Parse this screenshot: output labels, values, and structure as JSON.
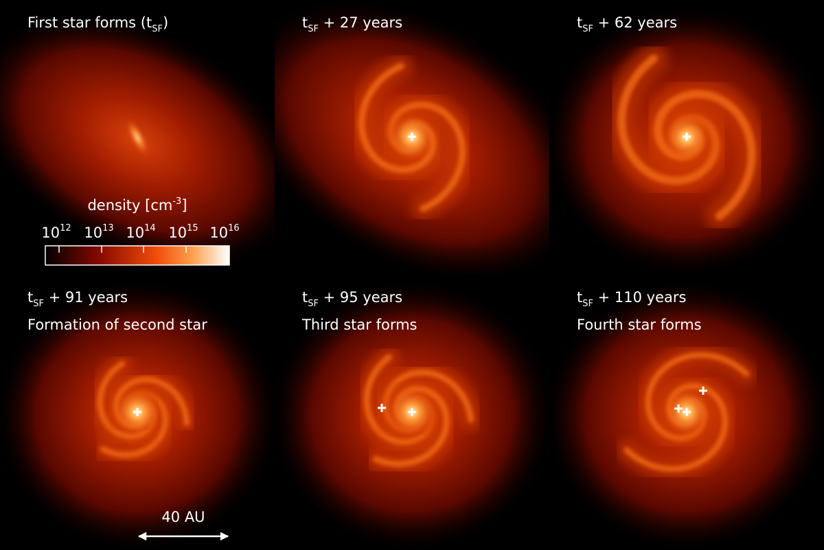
{
  "panels": [
    {
      "title": {
        "main": "First star forms (t",
        "sub": "SF",
        "tail": ")"
      }
    },
    {
      "title": {
        "main": "t",
        "sub": "SF",
        "tail": " + 27 years"
      }
    },
    {
      "title": {
        "main": "t",
        "sub": "SF",
        "tail": " + 62 years"
      }
    },
    {
      "title": {
        "main": "t",
        "sub": "SF",
        "tail": " + 91 years"
      },
      "subtitle": "Formation of second star"
    },
    {
      "title": {
        "main": "t",
        "sub": "SF",
        "tail": " + 95 years"
      },
      "subtitle": "Third star forms"
    },
    {
      "title": {
        "main": "t",
        "sub": "SF",
        "tail": " + 110 years"
      },
      "subtitle": "Fourth star forms"
    }
  ],
  "colorbar": {
    "label": {
      "main": "density [cm",
      "sup": "-3",
      "tail": "]"
    },
    "ticks": [
      {
        "base": "10",
        "exp": "12"
      },
      {
        "base": "10",
        "exp": "13"
      },
      {
        "base": "10",
        "exp": "14"
      },
      {
        "base": "10",
        "exp": "15"
      },
      {
        "base": "10",
        "exp": "16"
      }
    ]
  },
  "scale_bar": "40 AU"
}
